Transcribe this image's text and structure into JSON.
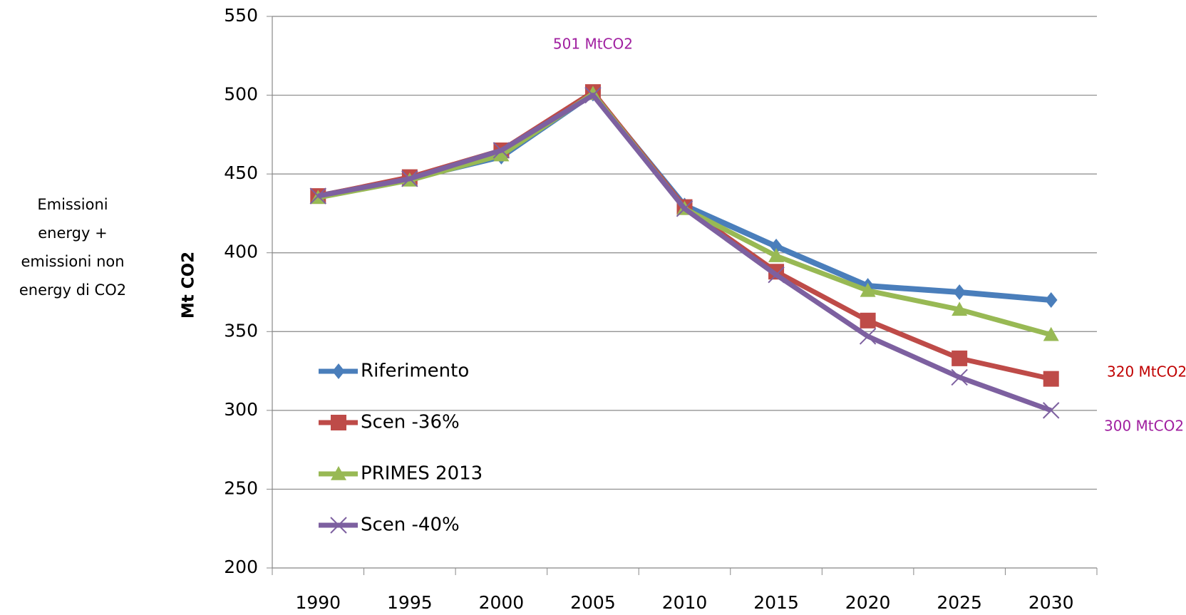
{
  "chart_data": {
    "type": "line",
    "y_label": "Mt CO2",
    "side_note": [
      "Emissioni",
      "energy +",
      "emissioni non",
      "energy di CO2"
    ],
    "categories": [
      "1990",
      "1995",
      "2000",
      "2005",
      "2010",
      "2015",
      "2020",
      "2025",
      "2030"
    ],
    "series": [
      {
        "name": "Riferimento",
        "color": "#4a7ebb",
        "marker": "diamond",
        "values": [
          436,
          447,
          461,
          501,
          430,
          404,
          379,
          375,
          370
        ]
      },
      {
        "name": "Scen -36%",
        "color": "#be4b48",
        "marker": "square",
        "values": [
          436,
          448,
          465,
          502,
          429,
          388,
          357,
          333,
          320
        ]
      },
      {
        "name": "PRIMES 2013",
        "color": "#98b954",
        "marker": "triangle",
        "values": [
          435,
          446,
          462,
          501,
          428,
          398,
          376,
          364,
          348
        ]
      },
      {
        "name": "Scen -40%",
        "color": "#7d60a0",
        "marker": "x",
        "values": [
          436,
          447,
          465,
          500,
          428,
          386,
          347,
          321,
          300
        ]
      }
    ],
    "annotations": [
      {
        "text": "501 MtCO2",
        "color": "#a020a0"
      },
      {
        "text": "320 MtCO2",
        "color": "#c00000"
      },
      {
        "text": "300 MtCO2",
        "color": "#a020a0"
      }
    ],
    "ylim": [
      200,
      550
    ],
    "yticks": [
      200,
      250,
      300,
      350,
      400,
      450,
      500,
      550
    ],
    "grid": true
  }
}
